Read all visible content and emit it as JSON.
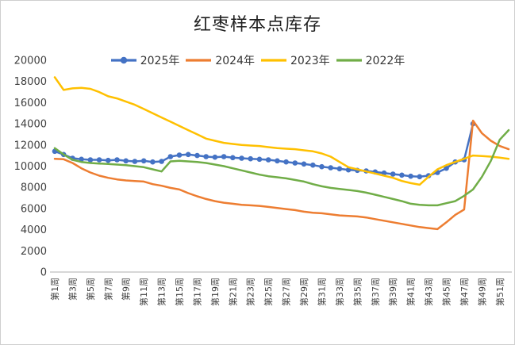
{
  "chart_data": {
    "type": "line",
    "title": "红枣样本点库存",
    "grid": false,
    "legend_position": "top-center",
    "plot_background": "#ffffff",
    "axis_line_color": "#bfbfbf",
    "ylim": [
      0,
      20000
    ],
    "y_ticks": [
      0,
      2000,
      4000,
      6000,
      8000,
      10000,
      12000,
      14000,
      16000,
      18000,
      20000
    ],
    "x_unit": "周 (week of year)",
    "x_weeks": 52,
    "x_tick_labels": [
      "第1周",
      "第3周",
      "第5周",
      "第7周",
      "第9周",
      "第11周",
      "第13周",
      "第15周",
      "第17周",
      "第19周",
      "第21周",
      "第23周",
      "第25周",
      "第27周",
      "第29周",
      "第31周",
      "第33周",
      "第35周",
      "第37周",
      "第39周",
      "第41周",
      "第43周",
      "第45周",
      "第47周",
      "第49周",
      "第51周"
    ],
    "series": [
      {
        "name": "2025年",
        "color": "#4472C4",
        "marker": true,
        "start_week": 1,
        "values": [
          11400,
          11100,
          10750,
          10650,
          10600,
          10600,
          10550,
          10600,
          10500,
          10450,
          10500,
          10400,
          10450,
          10900,
          11050,
          11100,
          11000,
          10900,
          10850,
          10900,
          10800,
          10750,
          10700,
          10650,
          10600,
          10500,
          10400,
          10300,
          10200,
          10100,
          9950,
          9850,
          9750,
          9650,
          9600,
          9550,
          9450,
          9350,
          9250,
          9150,
          9050,
          9000,
          9100,
          9400,
          9800,
          10400,
          10600,
          14000
        ]
      },
      {
        "name": "2024年",
        "color": "#ED7D31",
        "marker": false,
        "start_week": 1,
        "values": [
          10700,
          10650,
          10300,
          9800,
          9400,
          9100,
          8900,
          8750,
          8650,
          8600,
          8550,
          8300,
          8150,
          7950,
          7800,
          7450,
          7150,
          6900,
          6700,
          6550,
          6450,
          6350,
          6300,
          6250,
          6150,
          6050,
          5950,
          5850,
          5700,
          5600,
          5550,
          5450,
          5350,
          5300,
          5250,
          5150,
          5000,
          4850,
          4700,
          4550,
          4400,
          4250,
          4150,
          4050,
          4700,
          5400,
          5900,
          14300,
          13100,
          12400,
          11900,
          11600
        ]
      },
      {
        "name": "2023年",
        "color": "#FFC000",
        "marker": false,
        "start_week": 1,
        "values": [
          18400,
          17200,
          17350,
          17400,
          17300,
          17000,
          16600,
          16400,
          16100,
          15800,
          15400,
          15000,
          14600,
          14200,
          13800,
          13400,
          13000,
          12600,
          12400,
          12200,
          12100,
          12000,
          11950,
          11900,
          11800,
          11700,
          11650,
          11600,
          11500,
          11400,
          11200,
          10900,
          10400,
          9900,
          9700,
          9500,
          9300,
          9100,
          8900,
          8600,
          8400,
          8250,
          9000,
          9700,
          10100,
          10400,
          10700,
          11000,
          10950,
          10900,
          10800,
          10700
        ]
      },
      {
        "name": "2022年",
        "color": "#70AD47",
        "marker": false,
        "start_week": 1,
        "values": [
          11700,
          11100,
          10600,
          10400,
          10300,
          10250,
          10200,
          10150,
          10100,
          10000,
          9900,
          9700,
          9500,
          10450,
          10500,
          10450,
          10400,
          10300,
          10150,
          10000,
          9800,
          9600,
          9400,
          9200,
          9050,
          8950,
          8850,
          8700,
          8550,
          8300,
          8100,
          7950,
          7850,
          7750,
          7650,
          7500,
          7300,
          7100,
          6900,
          6700,
          6450,
          6350,
          6300,
          6300,
          6500,
          6700,
          7200,
          7800,
          9000,
          10500,
          12500,
          13400
        ]
      }
    ]
  }
}
